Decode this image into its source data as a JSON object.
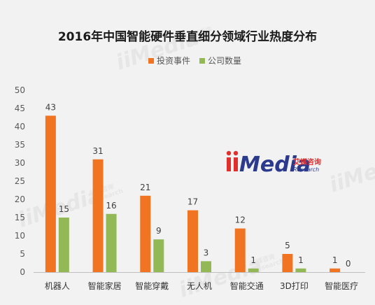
{
  "chart_data": {
    "type": "bar",
    "title": "2016年中国智能硬件垂直细分领域行业热度分布",
    "categories": [
      "机器人",
      "智能家居",
      "智能穿戴",
      "无人机",
      "智能交通",
      "3D打印",
      "智能医疗"
    ],
    "series": [
      {
        "name": "投资事件",
        "values": [
          43,
          31,
          21,
          17,
          12,
          5,
          1
        ]
      },
      {
        "name": "公司数量",
        "values": [
          15,
          16,
          9,
          3,
          1,
          1,
          0
        ]
      }
    ],
    "ylim": [
      0,
      50
    ],
    "yticks": [
      0,
      5,
      10,
      15,
      20,
      25,
      30,
      35,
      40,
      45,
      50
    ],
    "colors": [
      "#f07421",
      "#92b955"
    ],
    "legend": "top-center",
    "grid": false
  },
  "watermark": {
    "brand": "iiMedia",
    "cn": "艾媒咨询",
    "en": "Research"
  }
}
